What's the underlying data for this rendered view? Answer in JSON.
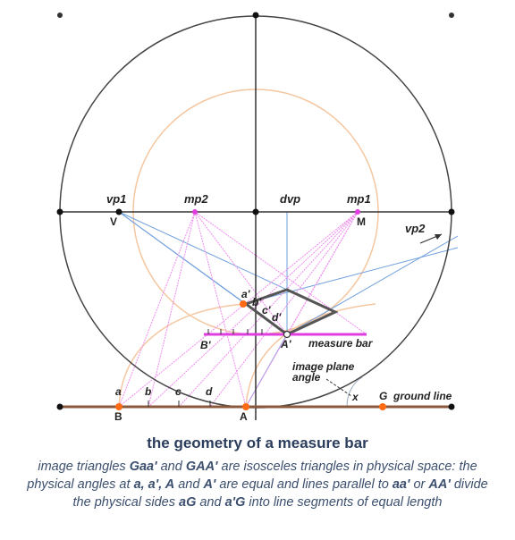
{
  "labels": {
    "vp1": "vp1",
    "vp1_letter": "V",
    "mp2": "mp2",
    "dvp": "dvp",
    "mp1": "mp1",
    "mp1_letter": "M",
    "vp2": "vp2",
    "a_prime": "a'",
    "b_prime": "b'",
    "c_prime": "c'",
    "d_prime": "d'",
    "B_prime": "B'",
    "A_prime": "A'",
    "measure_bar": "measure bar",
    "image_plane_1": "image plane",
    "image_plane_2": "angle",
    "x": "x",
    "G": "G",
    "ground_line": "ground line",
    "a": "a",
    "b": "b",
    "c": "c",
    "d": "d",
    "B": "B",
    "A": "A"
  },
  "caption": {
    "title": "the geometry of a measure bar",
    "p1": "image triangles ",
    "t1": "Gaa'",
    "p2": " and ",
    "t2": "GAA'",
    "p3": " are isosceles triangles in physical space: the physical angles at ",
    "t3": "a, a', A",
    "p4": " and ",
    "t4": "A'",
    "p5": " are equal and lines parallel to ",
    "t5": "aa'",
    "p6": " or ",
    "t6": "AA'",
    "p7": " divide the physical sides ",
    "t7": "aG",
    "p8": " and ",
    "t8": "a'G",
    "p9": " into line segments of equal length"
  },
  "colors": {
    "frame": "#333333",
    "ground_line": "#8b5a3c",
    "measure_bar": "#e03ce0",
    "orange_point": "#ff6a13",
    "peach_arc": "#f5c7a0",
    "blue_line": "#6f9fdc",
    "pink_line": "#ee8cee",
    "caption_title": "#2b3d5c"
  }
}
